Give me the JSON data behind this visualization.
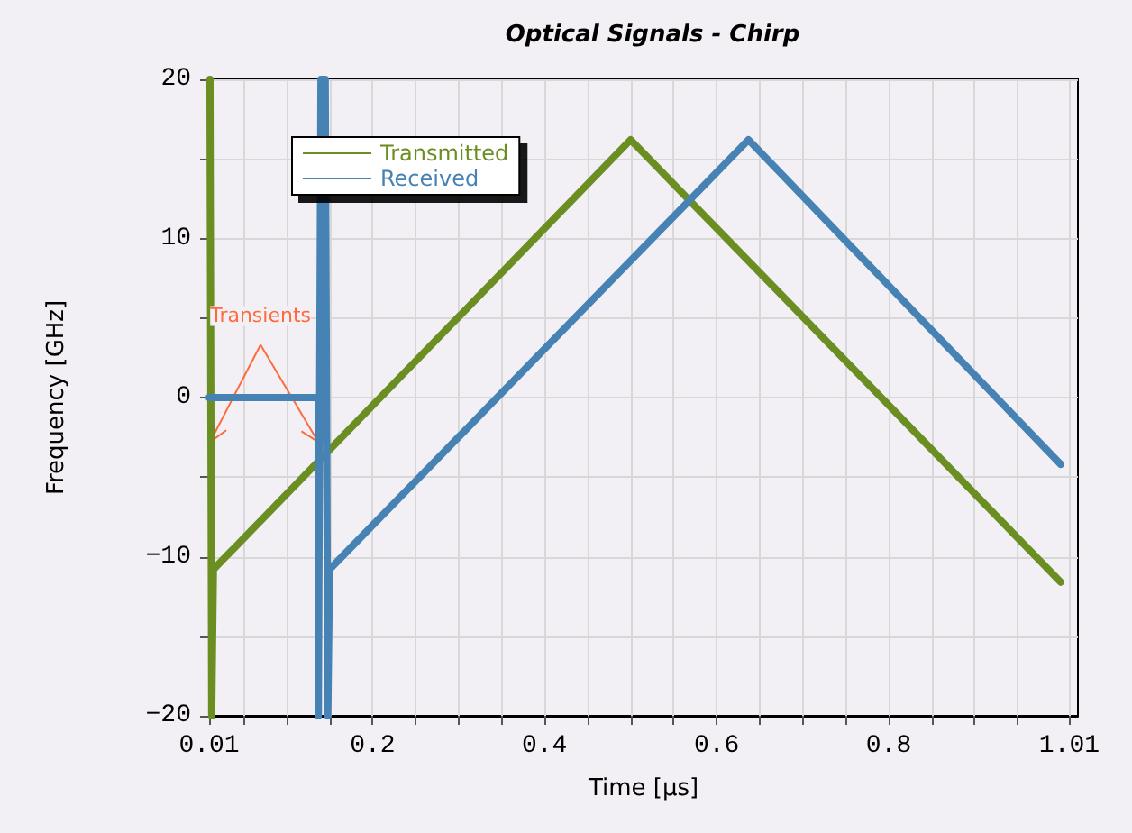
{
  "chart_data": {
    "type": "line",
    "title": "Optical Signals - Chirp",
    "xlabel": "Time [µs]",
    "ylabel": "Frequency [GHz]",
    "xlim": [
      0.01,
      1.02
    ],
    "ylim": [
      -20,
      20
    ],
    "xticks": [
      0.01,
      {
        "value": 0.05,
        "label": null
      },
      {
        "value": 0.1,
        "label": null
      },
      {
        "value": 0.15,
        "label": null
      },
      0.2,
      {
        "value": 0.25,
        "label": null
      },
      {
        "value": 0.3,
        "label": null
      },
      {
        "value": 0.35,
        "label": null
      },
      0.4,
      {
        "value": 0.45,
        "label": null
      },
      {
        "value": 0.5,
        "label": null
      },
      {
        "value": 0.55,
        "label": null
      },
      0.6,
      {
        "value": 0.65,
        "label": null
      },
      {
        "value": 0.7,
        "label": null
      },
      {
        "value": 0.75,
        "label": null
      },
      0.8,
      {
        "value": 0.85,
        "label": null
      },
      {
        "value": 0.9,
        "label": null
      },
      {
        "value": 0.95,
        "label": null
      },
      1.01
    ],
    "yticks": [
      -20,
      {
        "value": -15,
        "label": null
      },
      -10,
      {
        "value": -5,
        "label": null
      },
      0,
      {
        "value": 5,
        "label": null
      },
      10,
      {
        "value": 15,
        "label": null
      },
      20
    ],
    "grid": true,
    "legend": "top left",
    "marker": "none",
    "line_style": "solid",
    "annotations": [
      {
        "text": "Transients",
        "x": 0.011,
        "y": -2.8
      }
    ],
    "series": [
      {
        "name": "Transmitted",
        "color": "#6b8e23",
        "x": [
          0.011,
          0.013,
          0.015,
          0.5,
          1.0
        ],
        "values": [
          20,
          -20,
          -10.8,
          16.2,
          -11.6
        ]
      },
      {
        "name": "Received",
        "color": "#4682b4",
        "x": [
          0.01,
          0.137,
          0.137,
          0.14,
          0.145,
          0.148,
          0.15,
          0.637,
          1.0
        ],
        "values": [
          0,
          0,
          -20,
          20,
          20,
          -20,
          -10.8,
          16.2,
          -4.2
        ]
      }
    ]
  }
}
